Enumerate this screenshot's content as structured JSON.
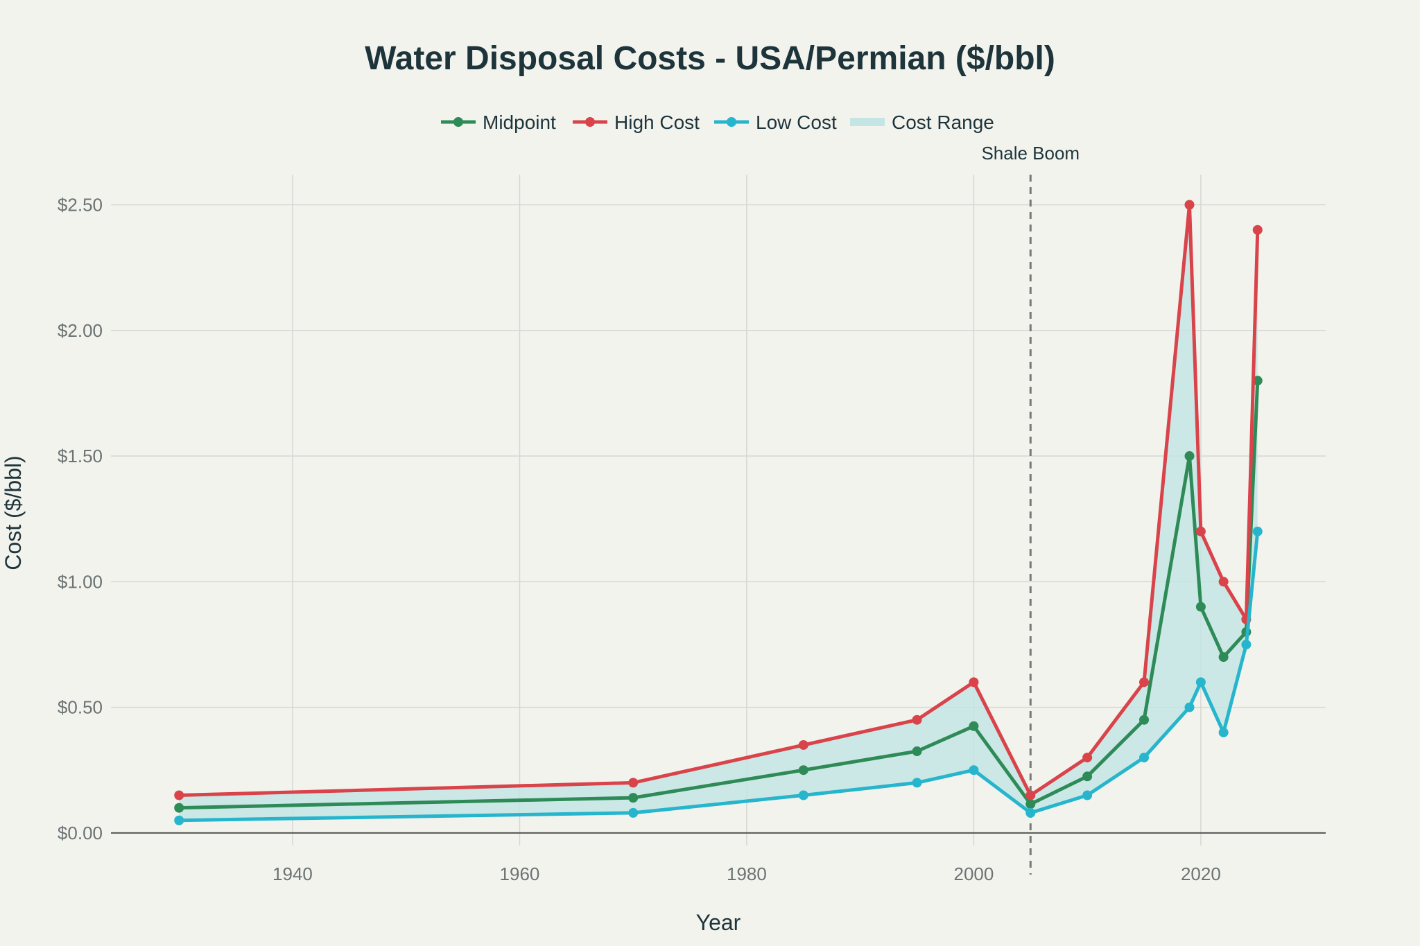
{
  "chart_data": {
    "type": "line",
    "title": "Water Disposal Costs - USA/Permian ($/bbl)",
    "xlabel": "Year",
    "ylabel": "Cost ($/bbl)",
    "xlim": [
      1924,
      2031
    ],
    "ylim": [
      -0.05,
      2.62
    ],
    "x_ticks": [
      1940,
      1960,
      1980,
      2000,
      2020
    ],
    "y_ticks": [
      0,
      0.5,
      1,
      1.5,
      2,
      2.5
    ],
    "y_tick_labels": [
      "$0.00",
      "$0.50",
      "$1.00",
      "$1.50",
      "$2.00",
      "$2.50"
    ],
    "grid": true,
    "legend_position": "top-center",
    "x": [
      1930,
      1970,
      1985,
      1995,
      2000,
      2005,
      2010,
      2015,
      2019,
      2020,
      2022,
      2024,
      2025
    ],
    "series": [
      {
        "name": "Midpoint",
        "color": "#2e8b57",
        "values": [
          0.1,
          0.14,
          0.25,
          0.325,
          0.425,
          0.115,
          0.225,
          0.45,
          1.5,
          0.9,
          0.7,
          0.8,
          1.8
        ]
      },
      {
        "name": "High Cost",
        "color": "#d9434a",
        "values": [
          0.15,
          0.2,
          0.35,
          0.45,
          0.6,
          0.15,
          0.3,
          0.6,
          2.5,
          1.2,
          1.0,
          0.85,
          2.4
        ]
      },
      {
        "name": "Low Cost",
        "color": "#26b5cc",
        "values": [
          0.05,
          0.08,
          0.15,
          0.2,
          0.25,
          0.08,
          0.15,
          0.3,
          0.5,
          0.6,
          0.4,
          0.75,
          1.2
        ]
      }
    ],
    "range_band": {
      "name": "Cost Range",
      "color": "#c4e5e4",
      "from_series": "Low Cost",
      "to_series": "High Cost"
    },
    "annotations": [
      {
        "type": "vline",
        "x": 2005,
        "text": "Shale Boom",
        "color": "#777777"
      }
    ]
  }
}
